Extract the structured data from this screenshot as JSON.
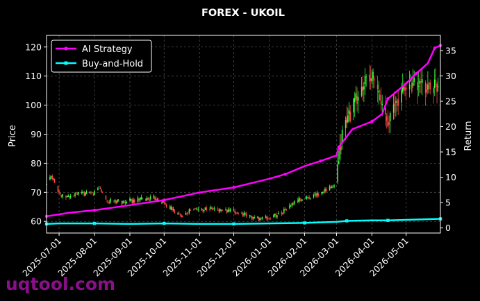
{
  "chart_data": {
    "type": "line",
    "title": "FOREX - UKOIL",
    "xlabel": "",
    "ylabel_left": "Price",
    "ylabel_right": "Return",
    "ylim_left": [
      56,
      124
    ],
    "ylim_right": [
      -1,
      38
    ],
    "yticks_left": [
      60,
      70,
      80,
      90,
      100,
      110,
      120
    ],
    "yticks_right": [
      0,
      5,
      10,
      15,
      20,
      25,
      30,
      35
    ],
    "xlim": [
      "2025-06-20",
      "2026-05-31"
    ],
    "xticks": [
      "2025-07-01",
      "2025-08-01",
      "2025-09-01",
      "2025-10-01",
      "2025-11-01",
      "2025-12-01",
      "2026-01-01",
      "2026-02-01",
      "2026-03-01",
      "2026-04-01",
      "2026-05-01"
    ],
    "grid": true,
    "legend_position": "top-left",
    "up_color": "#3cff3c",
    "down_color": "#ff4a4a",
    "candlestick": {
      "name": "",
      "axis": "left",
      "anchors": [
        [
          "2025-06-20",
          72.5
        ],
        [
          "2025-06-23",
          76
        ],
        [
          "2025-06-26",
          75
        ],
        [
          "2025-06-30",
          71
        ],
        [
          "2025-07-03",
          68.5
        ],
        [
          "2025-07-10",
          68.5
        ],
        [
          "2025-07-20",
          69.5
        ],
        [
          "2025-07-31",
          69.5
        ],
        [
          "2025-08-05",
          72
        ],
        [
          "2025-08-12",
          67
        ],
        [
          "2025-08-25",
          66.5
        ],
        [
          "2025-09-10",
          67.5
        ],
        [
          "2025-09-25",
          68
        ],
        [
          "2025-10-05",
          65
        ],
        [
          "2025-10-15",
          62
        ],
        [
          "2025-10-25",
          64
        ],
        [
          "2025-11-10",
          64.5
        ],
        [
          "2025-11-25",
          63.5
        ],
        [
          "2025-12-05",
          63
        ],
        [
          "2025-12-20",
          61
        ],
        [
          "2026-01-01",
          61
        ],
        [
          "2026-01-12",
          63
        ],
        [
          "2026-01-25",
          67
        ],
        [
          "2026-02-10",
          69
        ],
        [
          "2026-02-20",
          71
        ],
        [
          "2026-02-28",
          72
        ],
        [
          "2026-03-03",
          80
        ],
        [
          "2026-03-06",
          90
        ],
        [
          "2026-03-10",
          95
        ],
        [
          "2026-03-15",
          99
        ],
        [
          "2026-03-25",
          107
        ],
        [
          "2026-04-01",
          110
        ],
        [
          "2026-04-10",
          100
        ],
        [
          "2026-04-16",
          95
        ],
        [
          "2026-04-25",
          103
        ],
        [
          "2026-05-05",
          108
        ],
        [
          "2026-05-15",
          106
        ],
        [
          "2026-05-31",
          107
        ]
      ]
    },
    "series": [
      {
        "name": "AI Strategy",
        "axis": "right",
        "color": "#ff00ff",
        "x": [
          "2025-06-20",
          "2025-07-10",
          "2025-08-01",
          "2025-09-01",
          "2025-10-01",
          "2025-11-01",
          "2025-12-01",
          "2026-01-01",
          "2026-01-15",
          "2026-02-01",
          "2026-02-15",
          "2026-03-01",
          "2026-03-03",
          "2026-03-15",
          "2026-04-01",
          "2026-04-10",
          "2026-04-15",
          "2026-05-01",
          "2026-05-10",
          "2026-05-20",
          "2026-05-26",
          "2026-05-31"
        ],
        "values": [
          2.3,
          3.0,
          3.5,
          4.5,
          5.5,
          7.0,
          8.0,
          9.7,
          10.6,
          12.2,
          13.2,
          14.3,
          16.0,
          19.5,
          21.0,
          22.5,
          25.5,
          28.5,
          30.5,
          32.5,
          35.5,
          36.0
        ]
      },
      {
        "name": "Buy-and-Hold",
        "axis": "right",
        "color": "#00ffff",
        "x": [
          "2025-06-20",
          "2025-07-01",
          "2025-08-01",
          "2025-09-01",
          "2025-10-01",
          "2025-11-01",
          "2025-12-01",
          "2026-01-01",
          "2026-02-01",
          "2026-03-01",
          "2026-03-10",
          "2026-04-01",
          "2026-04-15",
          "2026-05-01",
          "2026-05-31"
        ],
        "values": [
          0.8,
          0.9,
          0.9,
          0.8,
          0.9,
          0.8,
          0.8,
          0.9,
          1.0,
          1.2,
          1.4,
          1.5,
          1.5,
          1.6,
          1.8
        ]
      }
    ]
  },
  "watermark": "uqtool.com"
}
